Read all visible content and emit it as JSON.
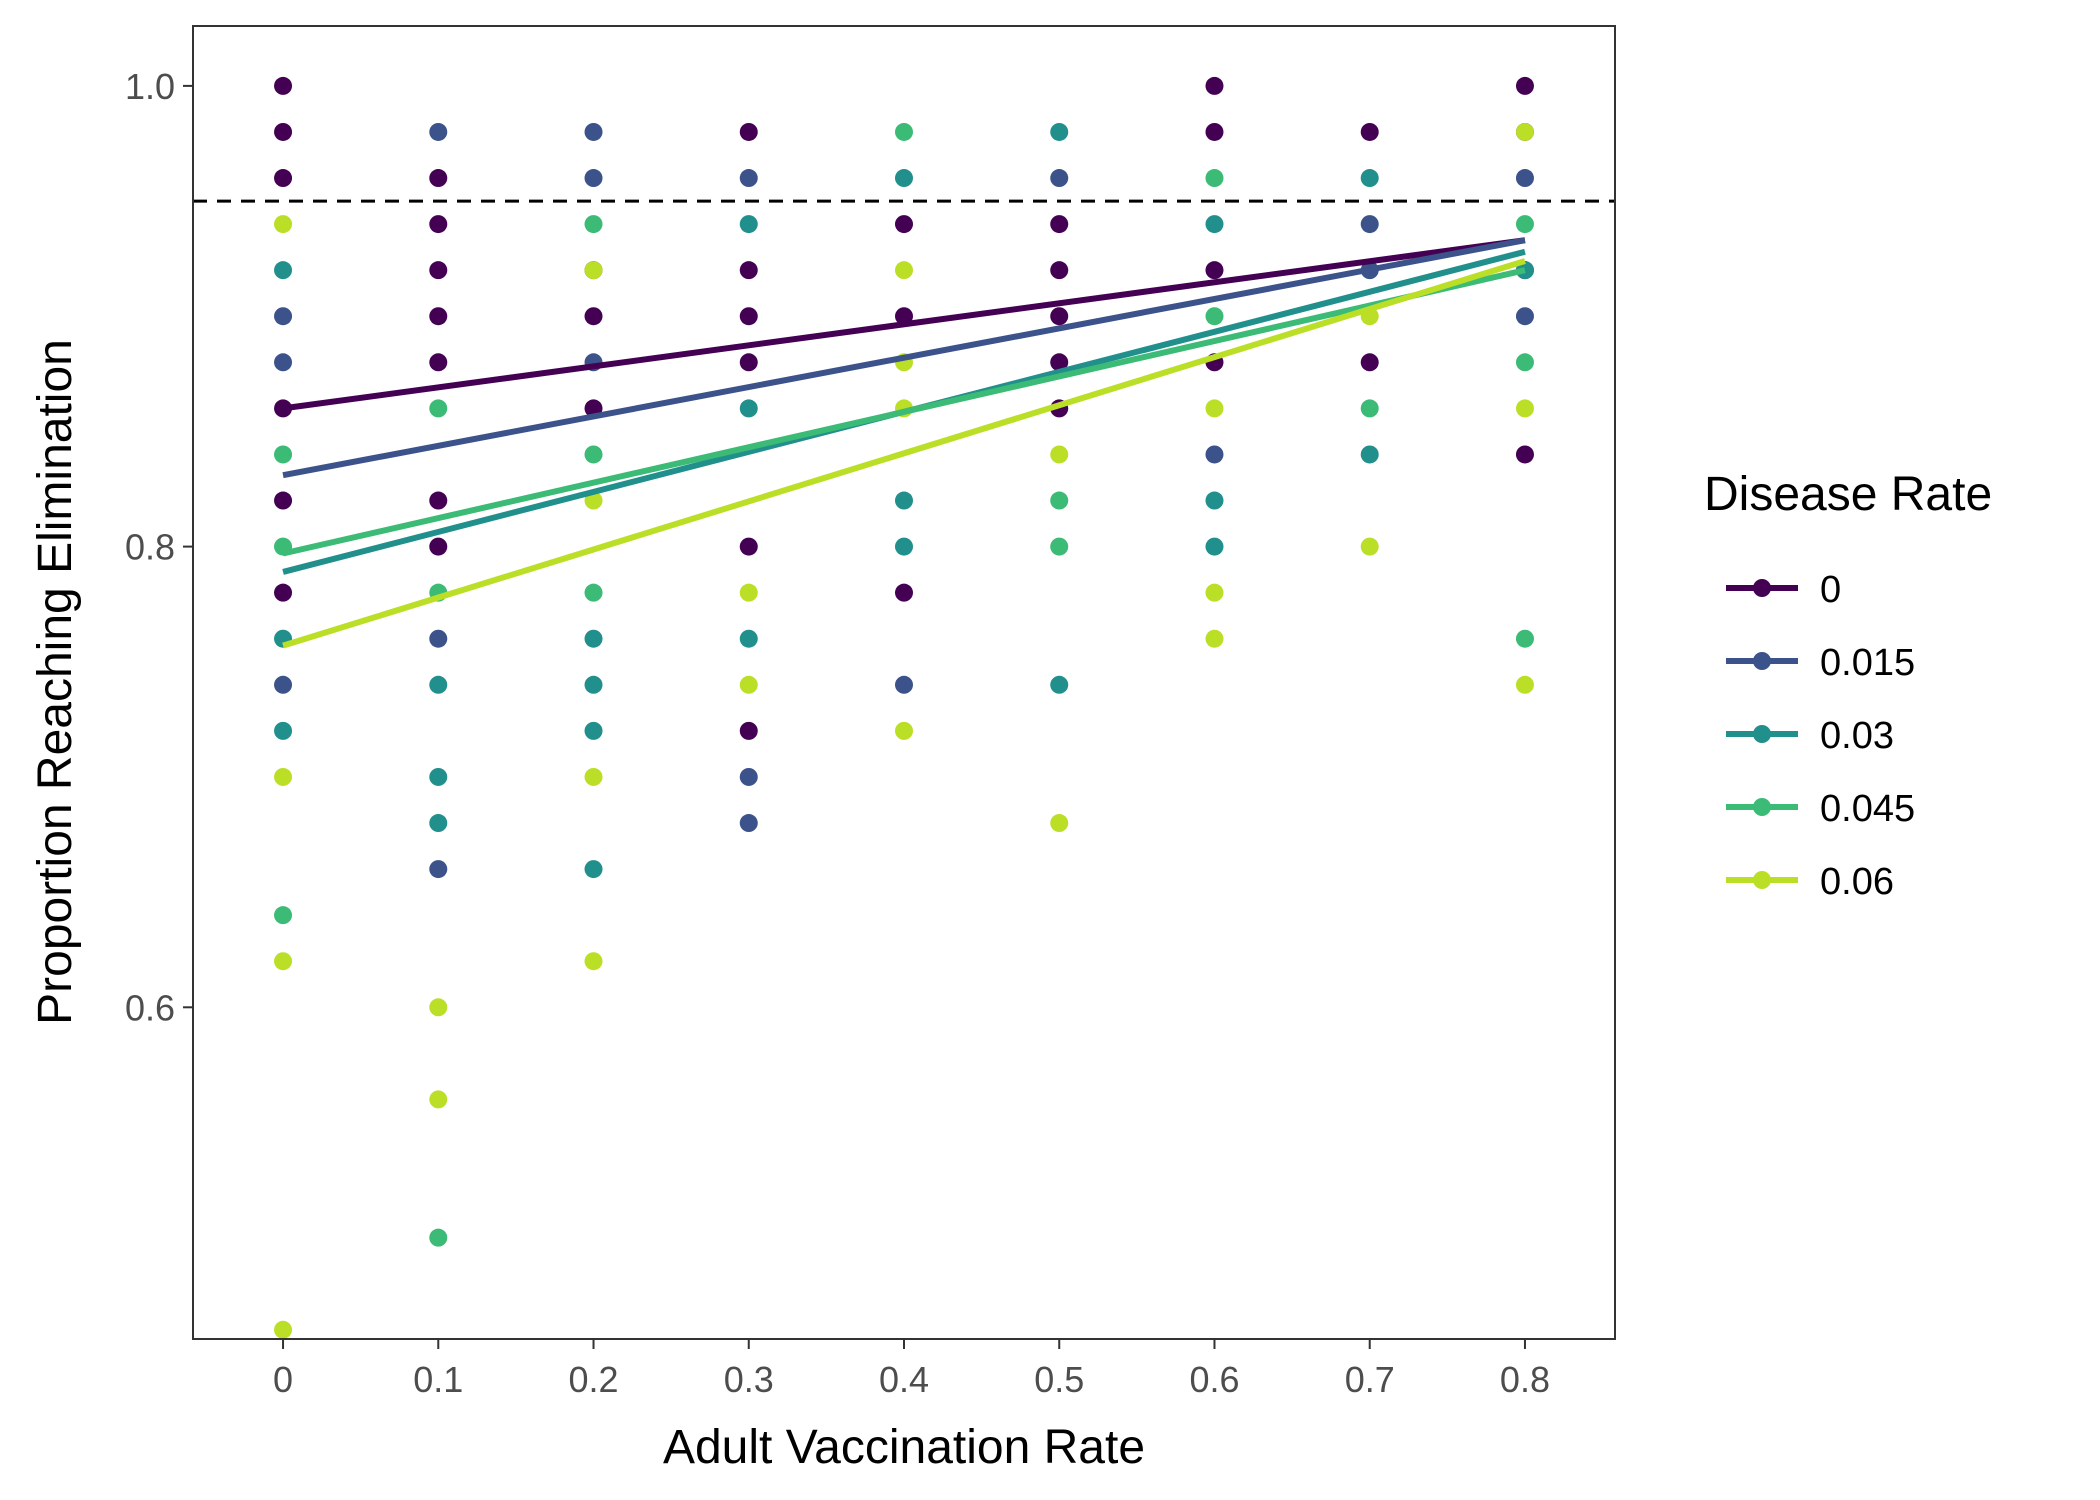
{
  "chart_data": {
    "type": "scatter",
    "title": "",
    "xlabel": "Adult Vaccination Rate",
    "ylabel": "Proportion Reaching Elimination",
    "xlim": [
      -0.058,
      0.858
    ],
    "ylim": [
      0.456,
      1.026
    ],
    "x_ticks": [
      0,
      0.1,
      0.2,
      0.3,
      0.4,
      0.5,
      0.6,
      0.7,
      0.8
    ],
    "x_tick_labels": [
      "0",
      "0.1",
      "0.2",
      "0.3",
      "0.4",
      "0.5",
      "0.6",
      "0.7",
      "0.8"
    ],
    "y_ticks": [
      0.6,
      0.8,
      1.0
    ],
    "y_tick_labels": [
      "0.6",
      "0.8",
      "1.0"
    ],
    "grid": false,
    "reference_line": {
      "y": 0.95,
      "style": "dashed",
      "color": "#000000"
    },
    "legend": {
      "title": "Disease Rate",
      "position": "right"
    },
    "series": [
      {
        "name": "0",
        "color": "#440154",
        "points": [
          [
            0,
            1.0
          ],
          [
            0,
            0.98
          ],
          [
            0,
            0.96
          ],
          [
            0,
            0.86
          ],
          [
            0,
            0.82
          ],
          [
            0,
            0.78
          ],
          [
            0.1,
            0.96
          ],
          [
            0.1,
            0.94
          ],
          [
            0.1,
            0.92
          ],
          [
            0.1,
            0.9
          ],
          [
            0.1,
            0.88
          ],
          [
            0.1,
            0.82
          ],
          [
            0.1,
            0.8
          ],
          [
            0.2,
            0.92
          ],
          [
            0.2,
            0.9
          ],
          [
            0.2,
            0.86
          ],
          [
            0.3,
            0.98
          ],
          [
            0.3,
            0.92
          ],
          [
            0.3,
            0.9
          ],
          [
            0.3,
            0.88
          ],
          [
            0.3,
            0.8
          ],
          [
            0.3,
            0.72
          ],
          [
            0.4,
            0.94
          ],
          [
            0.4,
            0.9
          ],
          [
            0.4,
            0.78
          ],
          [
            0.5,
            0.94
          ],
          [
            0.5,
            0.92
          ],
          [
            0.5,
            0.9
          ],
          [
            0.5,
            0.88
          ],
          [
            0.5,
            0.86
          ],
          [
            0.6,
            1.0
          ],
          [
            0.6,
            0.98
          ],
          [
            0.6,
            0.92
          ],
          [
            0.6,
            0.88
          ],
          [
            0.7,
            0.98
          ],
          [
            0.7,
            0.88
          ],
          [
            0.8,
            1.0
          ],
          [
            0.8,
            0.98
          ],
          [
            0.8,
            0.92
          ],
          [
            0.8,
            0.84
          ]
        ],
        "trend": [
          [
            0,
            0.86
          ],
          [
            0.8,
            0.933
          ]
        ]
      },
      {
        "name": "0.015",
        "color": "#3B528B",
        "points": [
          [
            0,
            0.9
          ],
          [
            0,
            0.88
          ],
          [
            0,
            0.74
          ],
          [
            0.1,
            0.98
          ],
          [
            0.1,
            0.76
          ],
          [
            0.1,
            0.66
          ],
          [
            0.2,
            0.98
          ],
          [
            0.2,
            0.96
          ],
          [
            0.2,
            0.88
          ],
          [
            0.3,
            0.96
          ],
          [
            0.3,
            0.7
          ],
          [
            0.3,
            0.68
          ],
          [
            0.4,
            0.74
          ],
          [
            0.5,
            0.96
          ],
          [
            0.6,
            0.84
          ],
          [
            0.7,
            0.94
          ],
          [
            0.7,
            0.92
          ],
          [
            0.8,
            0.96
          ],
          [
            0.8,
            0.9
          ]
        ],
        "trend": [
          [
            0,
            0.831
          ],
          [
            0.8,
            0.933
          ]
        ]
      },
      {
        "name": "0.03",
        "color": "#21908C",
        "points": [
          [
            0,
            0.92
          ],
          [
            0,
            0.76
          ],
          [
            0,
            0.72
          ],
          [
            0.1,
            0.74
          ],
          [
            0.1,
            0.7
          ],
          [
            0.1,
            0.68
          ],
          [
            0.2,
            0.76
          ],
          [
            0.2,
            0.74
          ],
          [
            0.2,
            0.72
          ],
          [
            0.2,
            0.66
          ],
          [
            0.3,
            0.94
          ],
          [
            0.3,
            0.86
          ],
          [
            0.3,
            0.76
          ],
          [
            0.4,
            0.96
          ],
          [
            0.4,
            0.82
          ],
          [
            0.4,
            0.8
          ],
          [
            0.5,
            0.98
          ],
          [
            0.5,
            0.74
          ],
          [
            0.6,
            0.94
          ],
          [
            0.6,
            0.82
          ],
          [
            0.6,
            0.8
          ],
          [
            0.7,
            0.96
          ],
          [
            0.7,
            0.84
          ],
          [
            0.8,
            0.92
          ]
        ],
        "trend": [
          [
            0,
            0.789
          ],
          [
            0.8,
            0.928
          ]
        ]
      },
      {
        "name": "0.045",
        "color": "#3BBB75",
        "points": [
          [
            0,
            0.84
          ],
          [
            0,
            0.8
          ],
          [
            0,
            0.64
          ],
          [
            0.1,
            0.86
          ],
          [
            0.1,
            0.78
          ],
          [
            0.1,
            0.5
          ],
          [
            0.2,
            0.94
          ],
          [
            0.2,
            0.84
          ],
          [
            0.2,
            0.78
          ],
          [
            0.4,
            0.98
          ],
          [
            0.5,
            0.82
          ],
          [
            0.5,
            0.8
          ],
          [
            0.6,
            0.96
          ],
          [
            0.6,
            0.9
          ],
          [
            0.7,
            0.86
          ],
          [
            0.8,
            0.94
          ],
          [
            0.8,
            0.88
          ],
          [
            0.8,
            0.76
          ]
        ],
        "trend": [
          [
            0,
            0.797
          ],
          [
            0.8,
            0.92
          ]
        ]
      },
      {
        "name": "0.06",
        "color": "#BBDF27",
        "points": [
          [
            0,
            0.94
          ],
          [
            0,
            0.7
          ],
          [
            0,
            0.62
          ],
          [
            0,
            0.46
          ],
          [
            0.1,
            0.6
          ],
          [
            0.1,
            0.56
          ],
          [
            0.2,
            0.92
          ],
          [
            0.2,
            0.82
          ],
          [
            0.2,
            0.7
          ],
          [
            0.2,
            0.62
          ],
          [
            0.3,
            0.78
          ],
          [
            0.3,
            0.74
          ],
          [
            0.4,
            0.92
          ],
          [
            0.4,
            0.88
          ],
          [
            0.4,
            0.86
          ],
          [
            0.4,
            0.72
          ],
          [
            0.5,
            0.84
          ],
          [
            0.5,
            0.68
          ],
          [
            0.6,
            0.86
          ],
          [
            0.6,
            0.78
          ],
          [
            0.6,
            0.76
          ],
          [
            0.7,
            0.9
          ],
          [
            0.7,
            0.8
          ],
          [
            0.8,
            0.98
          ],
          [
            0.8,
            0.86
          ],
          [
            0.8,
            0.74
          ]
        ],
        "trend": [
          [
            0,
            0.757
          ],
          [
            0.8,
            0.924
          ]
        ]
      }
    ]
  }
}
